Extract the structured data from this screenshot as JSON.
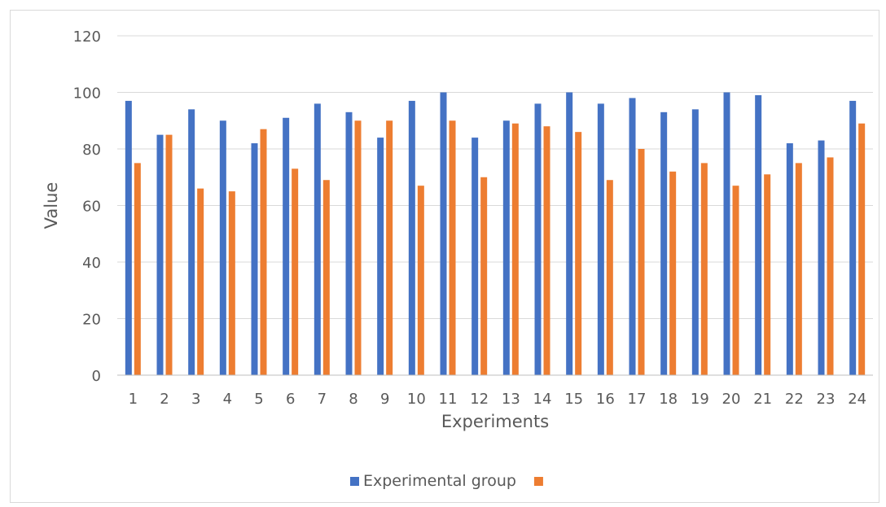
{
  "chart_data": {
    "type": "bar",
    "title": "",
    "xlabel": "Experiments",
    "ylabel": "Value",
    "ylim": [
      0,
      120
    ],
    "yticks": [
      0,
      20,
      40,
      60,
      80,
      100,
      120
    ],
    "grid": true,
    "legend_position": "bottom",
    "categories": [
      "1",
      "2",
      "3",
      "4",
      "5",
      "6",
      "7",
      "8",
      "9",
      "10",
      "11",
      "12",
      "13",
      "14",
      "15",
      "16",
      "17",
      "18",
      "19",
      "20",
      "21",
      "22",
      "23",
      "24"
    ],
    "series": [
      {
        "name": "Experimental group",
        "color": "#4472c4",
        "values": [
          97,
          85,
          94,
          90,
          82,
          91,
          96,
          93,
          84,
          97,
          100,
          84,
          90,
          96,
          100,
          96,
          98,
          93,
          94,
          100,
          99,
          82,
          83,
          97
        ]
      },
      {
        "name": "",
        "color": "#ed7d31",
        "values": [
          75,
          85,
          66,
          65,
          87,
          73,
          69,
          90,
          90,
          67,
          90,
          70,
          89,
          88,
          86,
          69,
          80,
          72,
          75,
          67,
          71,
          75,
          77,
          89
        ]
      }
    ],
    "colors": {
      "grid": "#d9d9d9",
      "axis": "#bfbfbf",
      "text": "#595959"
    }
  }
}
